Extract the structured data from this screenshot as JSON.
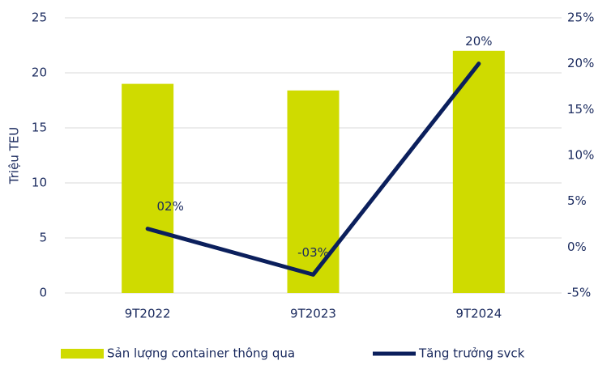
{
  "chart_data": {
    "type": "bar",
    "categories": [
      "9T2022",
      "9T2023",
      "9T2024"
    ],
    "y_label": "Triệu TEU",
    "series": [
      {
        "name": "Sản lượng container thông qua",
        "type": "bar",
        "color": "#cfdb00",
        "values": [
          19,
          18.4,
          22
        ]
      },
      {
        "name": "Tăng trưởng svck",
        "type": "line",
        "axis": "y2",
        "color": "#0b1f5c",
        "values": [
          2,
          -3,
          20
        ],
        "value_labels": [
          "02%",
          "-03%",
          "20%"
        ]
      }
    ],
    "ylim": [
      0,
      25
    ],
    "yticks": [
      0,
      5,
      10,
      15,
      20,
      25
    ],
    "y2lim": [
      -5,
      25
    ],
    "y2ticks": [
      {
        "value": -5,
        "label": "-5%"
      },
      {
        "value": 0,
        "label": "0%"
      },
      {
        "value": 5,
        "label": "5%"
      },
      {
        "value": 10,
        "label": "10%"
      },
      {
        "value": 15,
        "label": "15%"
      },
      {
        "value": 20,
        "label": "20%"
      },
      {
        "value": 25,
        "label": "25%"
      }
    ],
    "grid": true,
    "legend": "bottom"
  }
}
